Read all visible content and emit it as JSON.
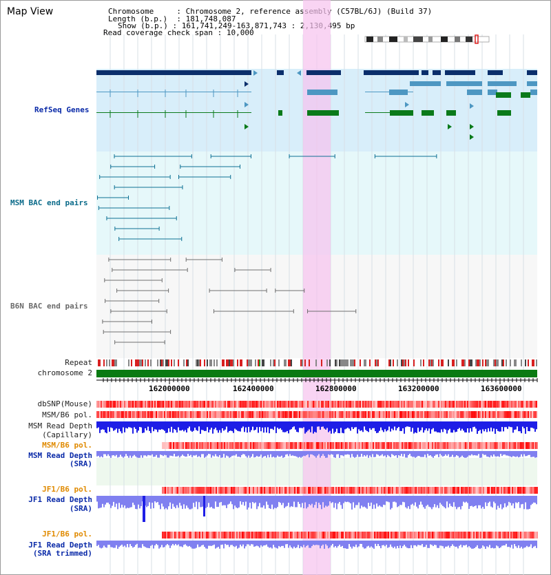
{
  "view": {
    "title": "Map View",
    "chromosome_label": "Chromosome",
    "chromosome_value": "Chromosome 2, reference assembly (C57BL/6J) (Build 37)",
    "length_label": "Length (b.p.)",
    "length_value": "181,748,087",
    "show_label": "Show (b.p.)",
    "show_value": "161,741,249-163,871,743 : 2,130,495 bp",
    "coverage_label": "Read coverage check span",
    "coverage_value": "10,000"
  },
  "tracks": {
    "refseq": "RefSeq Genes",
    "msm_bac": "MSM BAC end pairs",
    "b6n_bac": "B6N BAC end pairs",
    "repeat": "Repeat",
    "chromosome": "chromosome 2",
    "dbsnp": "dbSNP(Mouse)",
    "msm_b6_pol_1": "MSM/B6 pol.",
    "msm_depth_cap_1": "MSM Read Depth",
    "msm_depth_cap_2": "(Capillary)",
    "msm_b6_pol_2": "MSM/B6 pol.",
    "msm_depth_sra_1": "MSM Read Depth",
    "msm_depth_sra_2": "(SRA)",
    "jf1_b6_pol_1": "JF1/B6 pol.",
    "jf1_depth_sra_1": "JF1 Read Depth",
    "jf1_depth_sra_2": "(SRA)",
    "jf1_b6_pol_2": "JF1/B6 pol.",
    "jf1_depth_trim_1": "JF1 Read Depth",
    "jf1_depth_trim_2": "(SRA trimmed)"
  },
  "axis": {
    "ticks": [
      "162000000",
      "162400000",
      "162800000",
      "163200000",
      "163600000"
    ]
  },
  "colors": {
    "gene_navy": "#0b2e6b",
    "gene_mid": "#4d97c2",
    "gene_green": "#0a7a1a",
    "bac_msm": "#0c6f93",
    "bac_b6n": "#6f6f6f",
    "highlight": "#f6c2ee",
    "depth_blue": "#1e1ee6",
    "depth_light": "#8080f0",
    "pol_red": "#e82020",
    "chrom_green": "#0a7a12"
  }
}
